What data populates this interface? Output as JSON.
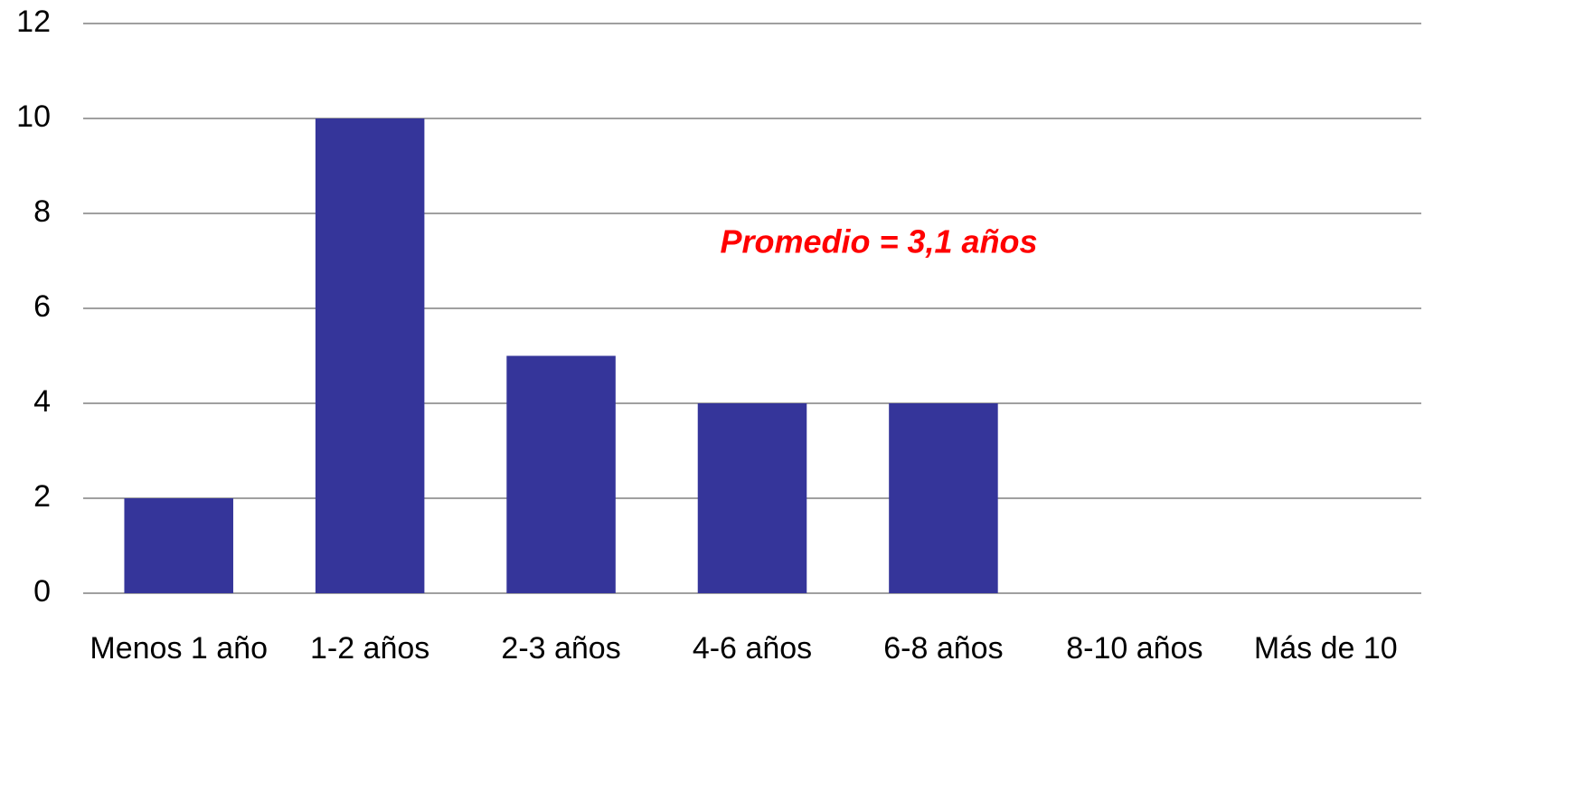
{
  "chart_data": {
    "type": "bar",
    "categories": [
      "Menos 1 año",
      "1-2 años",
      "2-3 años",
      "4-6 años",
      "6-8 años",
      "8-10 años",
      "Más de 10"
    ],
    "values": [
      2,
      10,
      5,
      4,
      4,
      0,
      0
    ],
    "color": "#35359a",
    "ylim": [
      0,
      12
    ],
    "yticks": [
      0,
      2,
      4,
      6,
      8,
      10,
      12
    ],
    "grid": true,
    "annotation": "Promedio =  3,1 años",
    "annotation_color": "#ff0000"
  }
}
